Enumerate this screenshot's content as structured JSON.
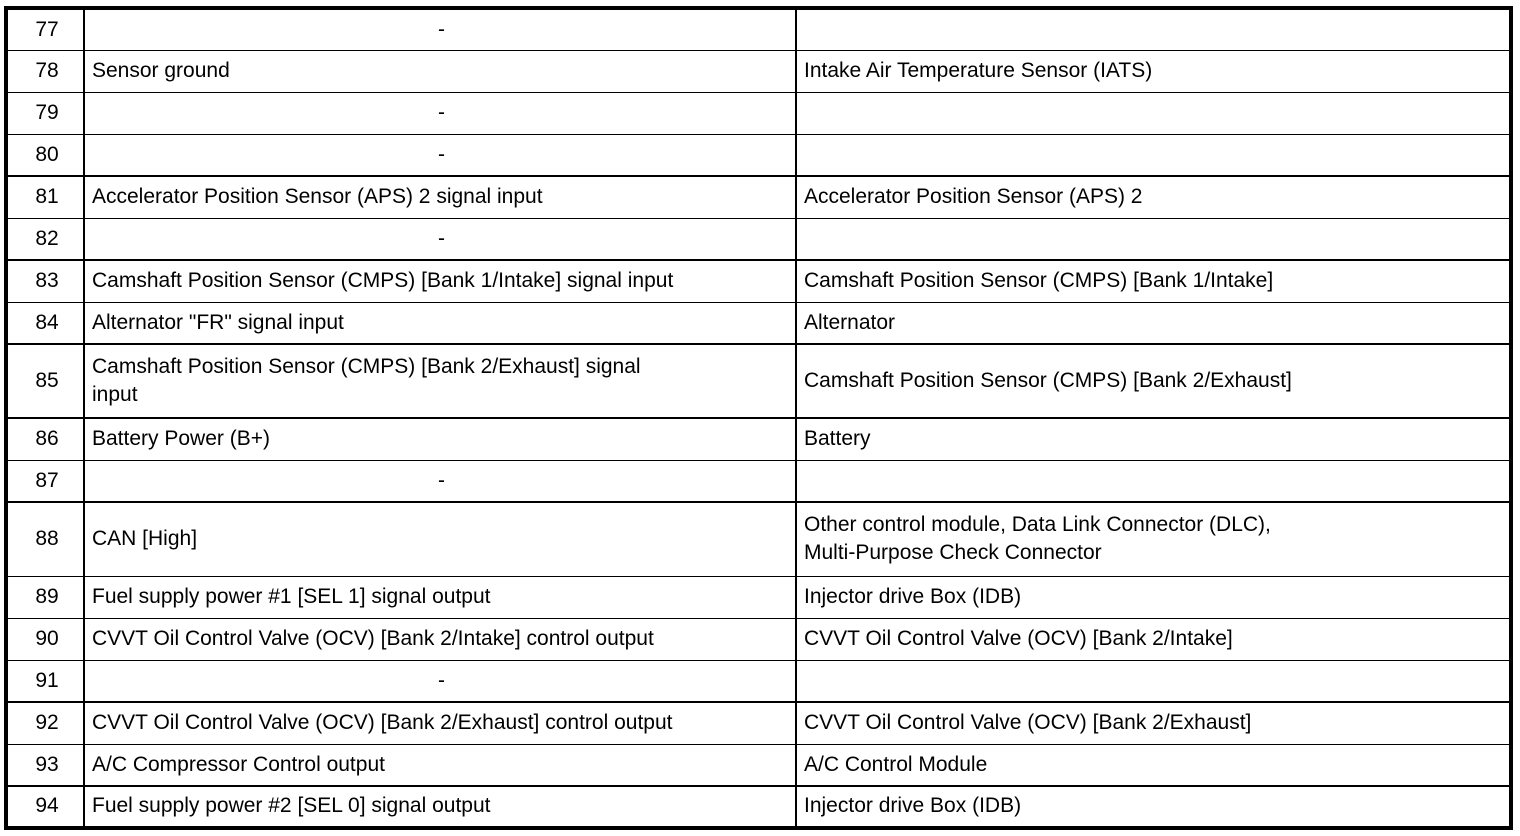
{
  "table": {
    "rows": [
      {
        "pin": "77",
        "function": "-",
        "connected_to": ""
      },
      {
        "pin": "78",
        "function": "Sensor ground",
        "connected_to": "Intake Air Temperature Sensor (IATS)"
      },
      {
        "pin": "79",
        "function": "-",
        "connected_to": ""
      },
      {
        "pin": "80",
        "function": "-",
        "connected_to": ""
      },
      {
        "pin": "81",
        "function": "Accelerator Position Sensor (APS) 2 signal input",
        "connected_to": "Accelerator Position Sensor (APS) 2"
      },
      {
        "pin": "82",
        "function": "-",
        "connected_to": ""
      },
      {
        "pin": "83",
        "function": "Camshaft Position Sensor (CMPS) [Bank 1/Intake] signal input",
        "connected_to": "Camshaft Position Sensor (CMPS) [Bank 1/Intake]"
      },
      {
        "pin": "84",
        "function": "Alternator \"FR\" signal input",
        "connected_to": "Alternator"
      },
      {
        "pin": "85",
        "function": "Camshaft Position Sensor (CMPS) [Bank 2/Exhaust] signal\ninput",
        "connected_to": "Camshaft Position Sensor (CMPS) [Bank 2/Exhaust]"
      },
      {
        "pin": "86",
        "function": "Battery Power (B+)",
        "connected_to": "Battery"
      },
      {
        "pin": "87",
        "function": "-",
        "connected_to": ""
      },
      {
        "pin": "88",
        "function": "CAN [High]",
        "connected_to": "Other control module, Data Link Connector (DLC),\nMulti-Purpose Check Connector"
      },
      {
        "pin": "89",
        "function": "Fuel supply power #1 [SEL 1] signal output",
        "connected_to": "Injector drive Box (IDB)"
      },
      {
        "pin": "90",
        "function": "CVVT Oil Control Valve (OCV) [Bank 2/Intake] control output",
        "connected_to": "CVVT Oil Control Valve (OCV) [Bank 2/Intake]"
      },
      {
        "pin": "91",
        "function": "-",
        "connected_to": ""
      },
      {
        "pin": "92",
        "function": "CVVT Oil Control Valve (OCV) [Bank 2/Exhaust] control output",
        "connected_to": "CVVT Oil Control Valve (OCV) [Bank 2/Exhaust]"
      },
      {
        "pin": "93",
        "function": "A/C Compressor Control output",
        "connected_to": "A/C Control Module"
      },
      {
        "pin": "94",
        "function": "Fuel supply power #2 [SEL 0] signal output",
        "connected_to": "Injector drive Box (IDB)"
      }
    ]
  }
}
